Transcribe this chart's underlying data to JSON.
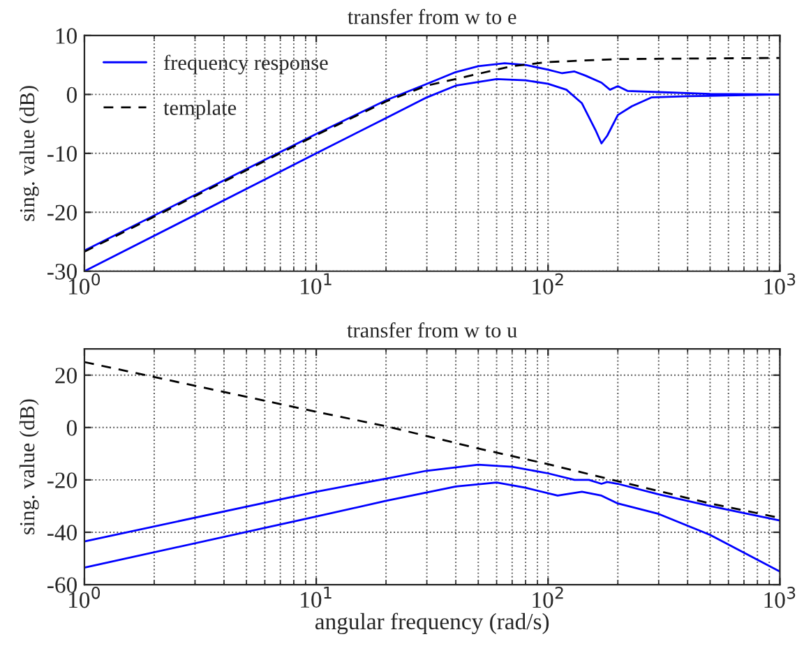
{
  "chart_data": [
    {
      "type": "line",
      "title": "transfer from w to e",
      "ylabel": "sing. value (dB)",
      "log": "x",
      "grid": true,
      "legend": "top left",
      "xlim": [
        1,
        1000
      ],
      "xticks": [
        {
          "value": 1,
          "label": "10$^{0}$"
        },
        {
          "value": 10,
          "label": "10$^{1}$"
        },
        {
          "value": 100,
          "label": "10$^{2}$"
        },
        {
          "value": 1000,
          "label": "10$^{3}$"
        }
      ],
      "ylim": [
        -30,
        10
      ],
      "yticks": [
        -30,
        -20,
        -10,
        0,
        10
      ],
      "series": [
        {
          "name": "frequency response",
          "color": "#0000ff",
          "line_style": "solid",
          "x": [
            1,
            10,
            20,
            30,
            40,
            50,
            65,
            80,
            100,
            115,
            130,
            145,
            170,
            185,
            200,
            220,
            300,
            500,
            1000
          ],
          "values": [
            -26.5,
            -6.7,
            -1.0,
            1.8,
            3.8,
            4.8,
            5.3,
            5.0,
            4.2,
            3.6,
            3.9,
            3.2,
            2.0,
            0.8,
            1.4,
            0.6,
            0.4,
            0.1,
            0
          ]
        },
        {
          "color": "#0000ff",
          "line_style": "solid",
          "x": [
            1,
            10,
            20,
            30,
            40,
            60,
            80,
            100,
            120,
            140,
            160,
            170,
            180,
            200,
            230,
            280,
            400,
            1000
          ],
          "values": [
            -30,
            -10,
            -4,
            -0.5,
            1.5,
            2.6,
            2.4,
            1.8,
            0.8,
            -1.5,
            -6,
            -8.3,
            -7,
            -3.5,
            -2,
            -0.5,
            -0.3,
            0
          ]
        },
        {
          "name": "template",
          "color": "#000000",
          "line_style": "dashed",
          "x": [
            1,
            10,
            20,
            30,
            50,
            70,
            100,
            200,
            1000
          ],
          "values": [
            -26.7,
            -6.9,
            -1.2,
            1.5,
            3.5,
            4.8,
            5.5,
            6.0,
            6.2
          ]
        }
      ]
    },
    {
      "type": "line",
      "title": "transfer from w to u",
      "ylabel": "sing. value (dB)",
      "xlabel": "angular frequency (rad/s)",
      "log": "x",
      "grid": true,
      "xlim": [
        1,
        1000
      ],
      "xticks": [
        {
          "value": 1,
          "label": "10$^{0}$"
        },
        {
          "value": 10,
          "label": "10$^{1}$"
        },
        {
          "value": 100,
          "label": "10$^{2}$"
        },
        {
          "value": 1000,
          "label": "10$^{3}$"
        }
      ],
      "ylim": [
        -60,
        30
      ],
      "yticks": [
        -60,
        -40,
        -20,
        0,
        20
      ],
      "series": [
        {
          "color": "#0000ff",
          "line_style": "solid",
          "x": [
            1,
            10,
            20,
            30,
            50,
            70,
            100,
            130,
            150,
            170,
            180,
            200,
            300,
            500,
            1000
          ],
          "values": [
            -43.5,
            -24.5,
            -19.5,
            -16.5,
            -14.2,
            -15,
            -17.5,
            -20,
            -20,
            -21.5,
            -20.8,
            -21.5,
            -25.5,
            -30,
            -35.5
          ]
        },
        {
          "color": "#0000ff",
          "line_style": "solid",
          "x": [
            1,
            10,
            20,
            40,
            60,
            80,
            110,
            140,
            170,
            200,
            300,
            500,
            1000
          ],
          "values": [
            -53.5,
            -34,
            -28,
            -22.5,
            -21,
            -23,
            -26,
            -24.5,
            -26,
            -29,
            -33,
            -41,
            -55
          ]
        },
        {
          "color": "#000000",
          "line_style": "dashed",
          "x": [
            1,
            10,
            20,
            50,
            100,
            200,
            500,
            1000
          ],
          "values": [
            25,
            6,
            0.5,
            -8,
            -14,
            -20.5,
            -29,
            -34.5
          ]
        }
      ]
    }
  ]
}
